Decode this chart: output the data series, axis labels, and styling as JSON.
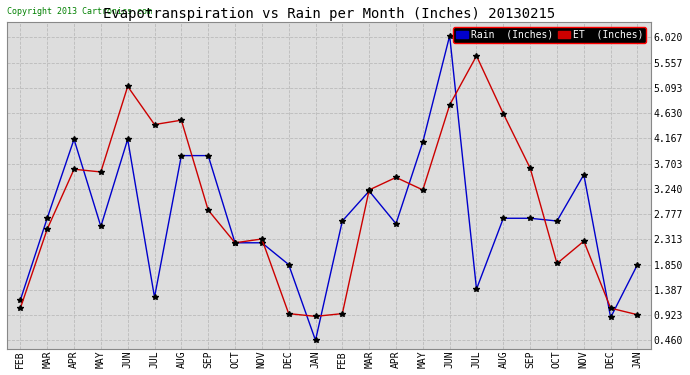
{
  "title": "Evapotranspiration vs Rain per Month (Inches) 20130215",
  "copyright": "Copyright 2013 Cartronics.com",
  "months": [
    "FEB",
    "MAR",
    "APR",
    "MAY",
    "JUN",
    "JUL",
    "AUG",
    "SEP",
    "OCT",
    "NOV",
    "DEC",
    "JAN",
    "FEB",
    "MAR",
    "APR",
    "MAY",
    "JUN",
    "JUL",
    "AUG",
    "SEP",
    "OCT",
    "NOV",
    "DEC",
    "JAN"
  ],
  "rain": [
    1.2,
    2.7,
    4.15,
    2.55,
    4.15,
    1.25,
    3.85,
    3.85,
    2.25,
    2.25,
    1.85,
    0.46,
    2.65,
    3.2,
    2.6,
    4.1,
    6.05,
    1.4,
    2.7,
    2.7,
    2.65,
    3.5,
    0.88,
    1.85
  ],
  "et": [
    1.05,
    2.5,
    3.6,
    3.55,
    5.12,
    4.42,
    4.5,
    2.85,
    2.25,
    2.32,
    0.95,
    0.9,
    0.95,
    3.22,
    3.45,
    3.22,
    4.78,
    5.68,
    4.62,
    3.62,
    1.87,
    2.28,
    1.05,
    0.93
  ],
  "rain_color": "#0000cc",
  "et_color": "#cc0000",
  "background_color": "#ffffff",
  "plot_bg_color": "#dddddd",
  "grid_color": "#bbbbbb",
  "yticks": [
    0.46,
    0.923,
    1.387,
    1.85,
    2.313,
    2.777,
    3.24,
    3.703,
    4.167,
    4.63,
    5.093,
    5.557,
    6.02
  ],
  "ylim": [
    0.3,
    6.3
  ],
  "title_fontsize": 10,
  "tick_fontsize": 7,
  "legend_fontsize": 7
}
